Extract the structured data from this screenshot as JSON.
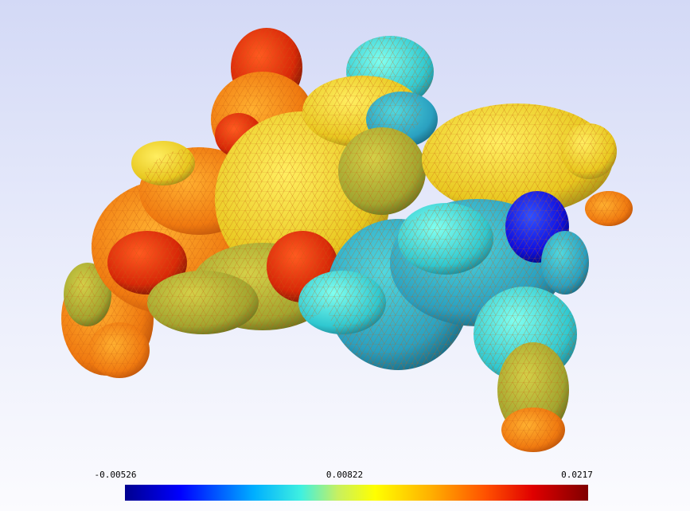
{
  "colorbar": {
    "min_label": "-0.00526",
    "mid_label": "0.00822",
    "max_label": "0.0217",
    "colors": [
      "#00008f",
      "#0000ff",
      "#00b0ff",
      "#3ff0e0",
      "#c8f060",
      "#ffff00",
      "#ffb000",
      "#ff5000",
      "#e00000",
      "#800000"
    ]
  },
  "surface": {
    "description_colors": {
      "high": "#e03010",
      "mid": "#f0e040",
      "low": "#1020e0"
    }
  }
}
